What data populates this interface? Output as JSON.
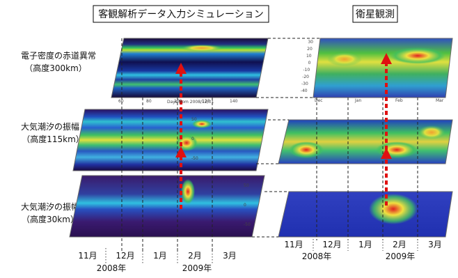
{
  "titles": {
    "simulation": "客観解析データ入力シミュレーション",
    "observation": "衛星観測"
  },
  "rows": [
    {
      "label": "電子密度の赤道異常",
      "altitude": "（高度300km）"
    },
    {
      "label": "大気潮汐の振幅",
      "altitude": "（高度115km）"
    },
    {
      "label": "大気潮汐の振幅",
      "altitude": "（高度30km）"
    }
  ],
  "months": [
    "11月",
    "12月",
    "1月",
    "2月",
    "3月"
  ],
  "years": [
    "2008年",
    "2009年"
  ],
  "panel_ticks": {
    "days": [
      "60",
      "80",
      "100",
      "120",
      "140"
    ],
    "days_caption": "Days from 2008/12/01",
    "lat_left": [
      "50",
      "0",
      "-50"
    ],
    "obs_months": [
      "Dec",
      "Jan",
      "Feb",
      "Mar"
    ],
    "obs_lat": [
      "30",
      "20",
      "10",
      "0",
      "-10",
      "-20",
      "-30",
      "-40"
    ]
  }
}
